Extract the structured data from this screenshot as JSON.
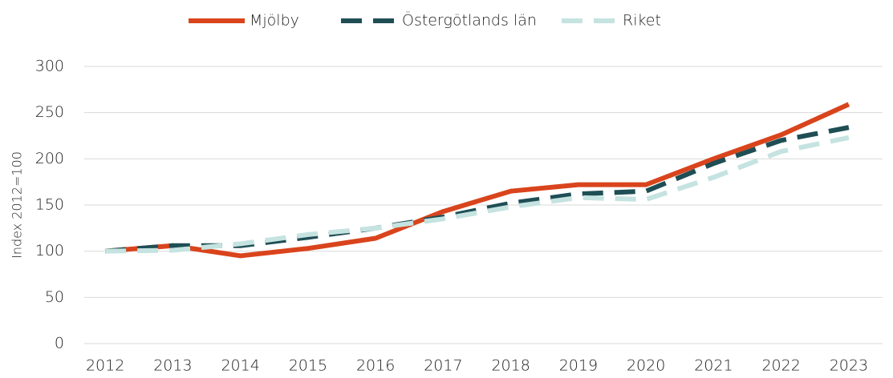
{
  "chart_data": {
    "type": "line",
    "ylabel": "Index 2012=100",
    "categories": [
      "2012",
      "2013",
      "2014",
      "2015",
      "2016",
      "2017",
      "2018",
      "2019",
      "2020",
      "2021",
      "2022",
      "2023"
    ],
    "series": [
      {
        "name": "Mjölby",
        "color": "#d9441c",
        "dash": "solid",
        "values": [
          100,
          106,
          95,
          103,
          114,
          143,
          165,
          172,
          172,
          200,
          226,
          259
        ]
      },
      {
        "name": "Östergötlands län",
        "color": "#1f4e55",
        "dash": "dashed",
        "values": [
          100,
          106,
          106,
          115,
          125,
          137,
          152,
          162,
          165,
          195,
          220,
          234
        ]
      },
      {
        "name": "Riket",
        "color": "#c5e3e0",
        "dash": "dashed",
        "values": [
          100,
          101,
          108,
          118,
          125,
          135,
          148,
          158,
          156,
          180,
          208,
          223
        ]
      }
    ],
    "ylim": [
      0,
      300
    ],
    "yticks": [
      0,
      50,
      100,
      150,
      200,
      250,
      300
    ],
    "grid": true,
    "legend": "top"
  }
}
